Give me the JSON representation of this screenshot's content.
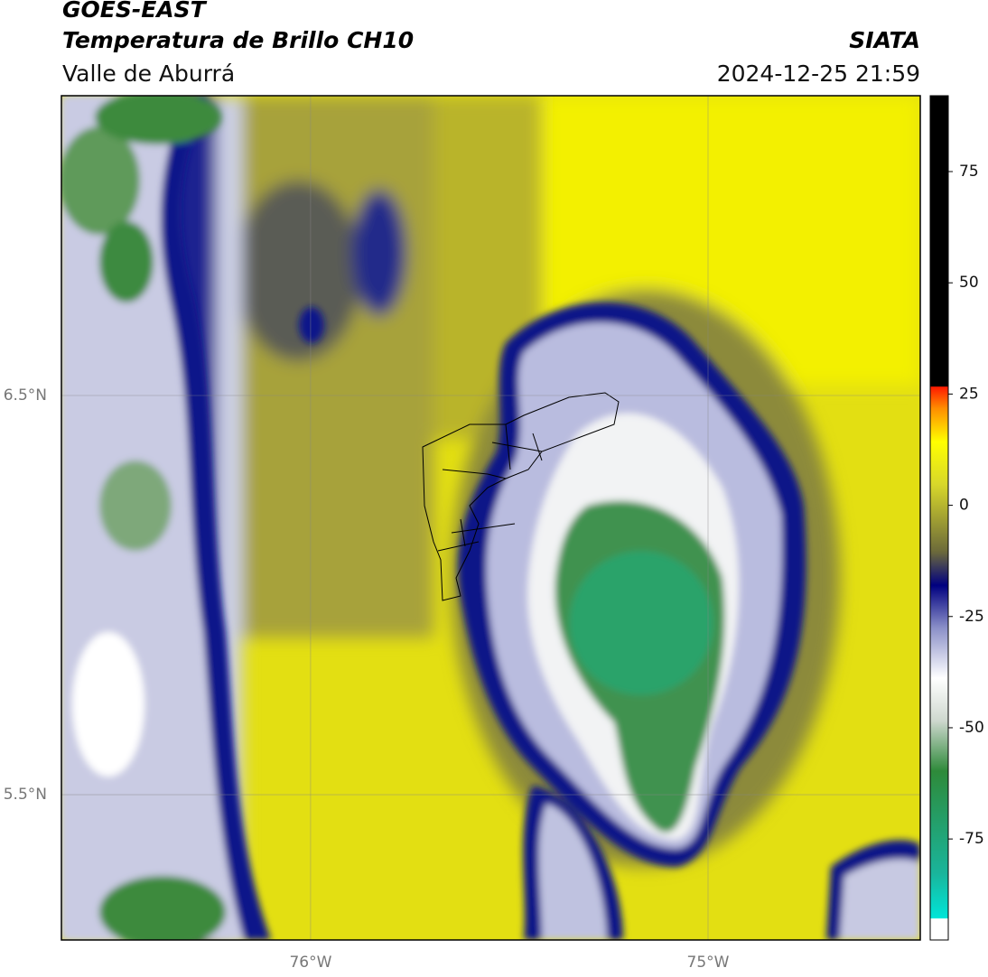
{
  "header": {
    "title": "GOES-EAST",
    "subtitle": "Temperatura de Brillo CH10",
    "region": "Valle de Aburrá",
    "source": "SIATA",
    "datetime": "2024-12-25 21:59"
  },
  "map": {
    "lon_range": [
      -76.627,
      -74.466
    ],
    "lat_range": [
      5.136,
      7.251
    ],
    "lon_ticks": [
      {
        "value": -76,
        "label": "76°W"
      },
      {
        "value": -75,
        "label": "75°W"
      }
    ],
    "lat_ticks": [
      {
        "value": 6.5,
        "label": "6.5°N"
      },
      {
        "value": 5.5,
        "label": "5.5°N"
      }
    ]
  },
  "colorbar": {
    "range": [
      -97.7,
      92.05
    ],
    "ticks": [
      75,
      50,
      25,
      0,
      -25,
      -50,
      -75
    ]
  }
}
